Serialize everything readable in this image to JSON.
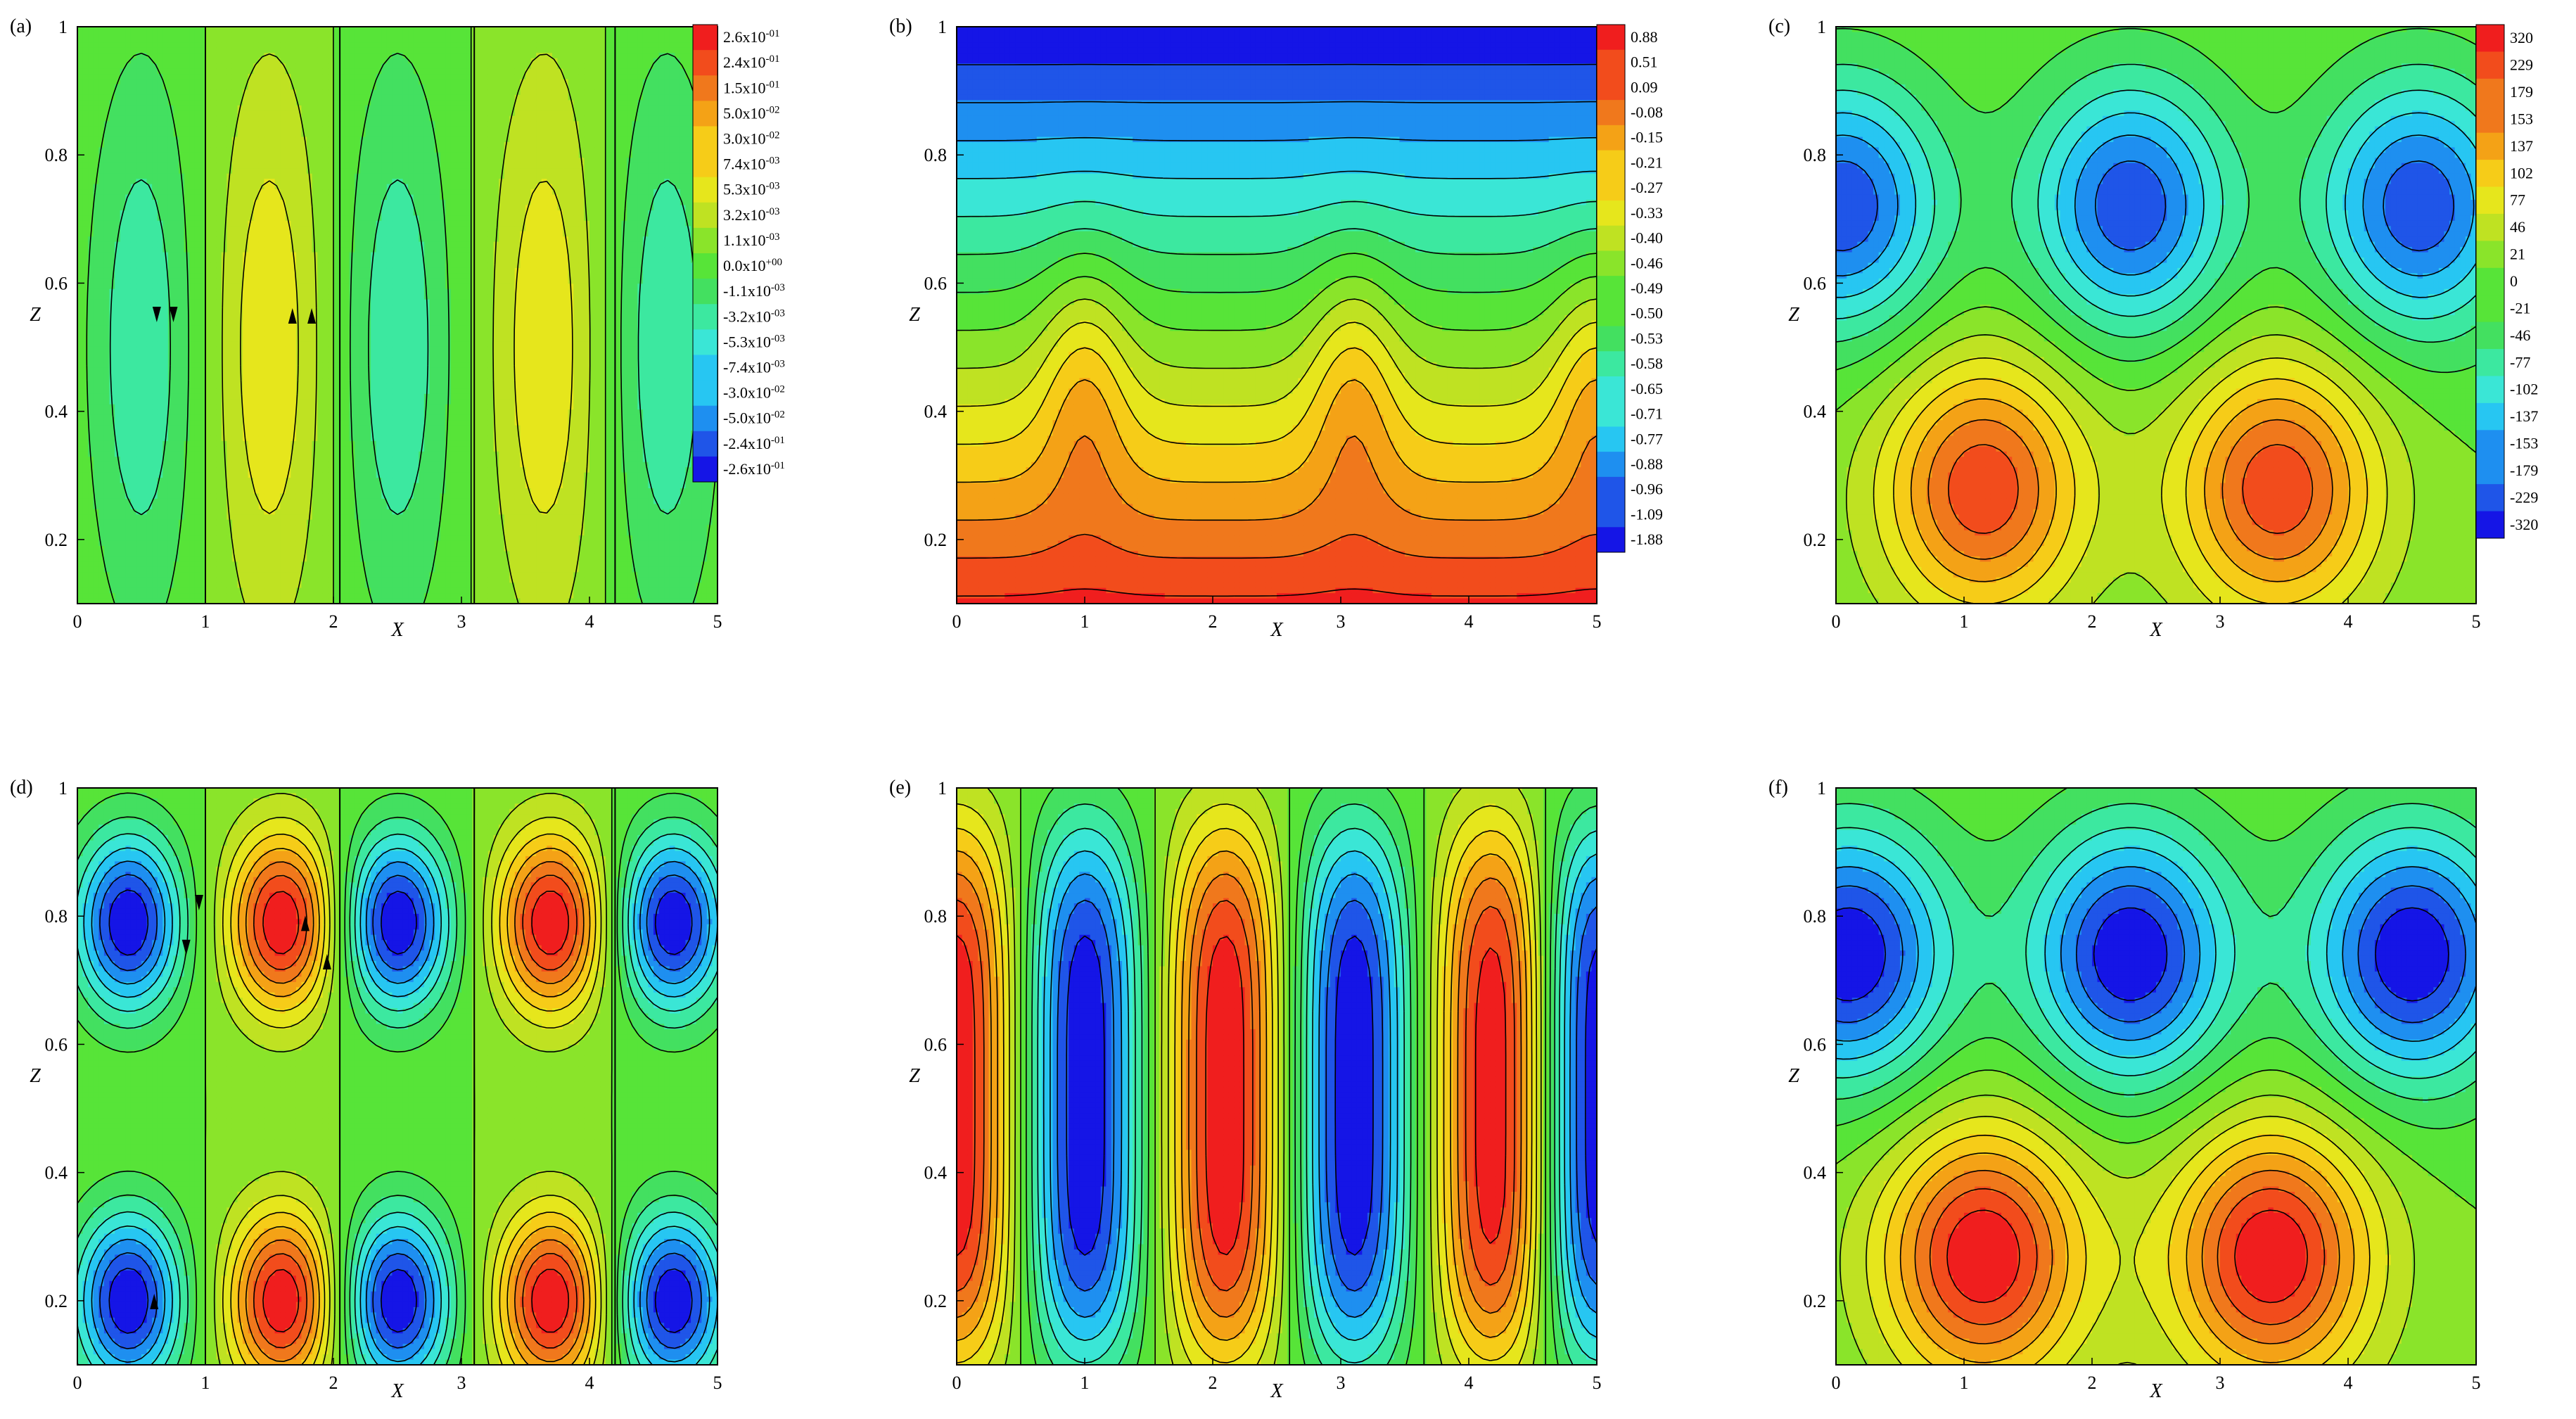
{
  "figure": {
    "colors": {
      "scale": [
        "#1515e6",
        "#1f55e8",
        "#1e8ff0",
        "#27c6f2",
        "#3ae6d6",
        "#3ce8a0",
        "#43e060",
        "#57e438",
        "#8ae42a",
        "#bfe222",
        "#e6e61c",
        "#f6cc18",
        "#f4a216",
        "#f0781c",
        "#f24c1c",
        "#f01e1e"
      ],
      "contour": "#000000"
    }
  },
  "chart_data": [
    {
      "id": "a",
      "label": "(a)",
      "type": "contour",
      "pattern": "cells",
      "xlabel": "X",
      "ylabel": "Z",
      "xlim": [
        0,
        5
      ],
      "ylim": [
        0.1,
        1
      ],
      "xticks": [
        "0",
        "1",
        "2",
        "3",
        "4",
        "5"
      ],
      "yticks": [
        "0.2",
        "0.4",
        "0.6",
        "0.8",
        "1"
      ],
      "ytick_values": [
        0.2,
        0.4,
        0.6,
        0.8,
        1.0
      ],
      "cell_centers": [
        0.5,
        1.5,
        2.5,
        3.65,
        4.6
      ],
      "cell_signs": [
        -1,
        1,
        -1,
        1,
        -1
      ],
      "cell_boundaries": [
        1.0,
        2.05,
        3.1,
        4.2
      ],
      "rolls_z": [
        0.5
      ],
      "amplitude_level": 0.35,
      "arrows": [
        {
          "x": 0.62,
          "z": 0.55,
          "dir": "down"
        },
        {
          "x": 0.75,
          "z": 0.55,
          "dir": "down"
        },
        {
          "x": 1.68,
          "z": 0.55,
          "dir": "up"
        },
        {
          "x": 1.83,
          "z": 0.55,
          "dir": "up"
        }
      ],
      "colorbar": {
        "labels": [
          "2.6x10",
          "2.4x10",
          "1.5x10",
          "5.0x10",
          "3.0x10",
          "7.4x10",
          "5.3x10",
          "3.2x10",
          "1.1x10",
          "0.0x10",
          "-1.1x10",
          "-3.2x10",
          "-5.3x10",
          "-7.4x10",
          "-3.0x10",
          "-5.0x10",
          "-2.4x10",
          "-2.6x10"
        ],
        "exponents": [
          "-01",
          "-01",
          "-01",
          "-02",
          "-02",
          "-03",
          "-03",
          "-03",
          "-03",
          "+00",
          "-03",
          "-03",
          "-03",
          "-03",
          "-02",
          "-02",
          "-01",
          "-01"
        ]
      }
    },
    {
      "id": "b",
      "label": "(b)",
      "type": "contour",
      "pattern": "layers",
      "xlabel": "X",
      "ylabel": "Z",
      "xlim": [
        0,
        5
      ],
      "ylim": [
        0.1,
        1
      ],
      "xticks": [
        "0",
        "1",
        "2",
        "3",
        "4",
        "5"
      ],
      "yticks": [
        "0.2",
        "0.4",
        "0.6",
        "0.8",
        "1"
      ],
      "ytick_values": [
        0.2,
        0.4,
        0.6,
        0.8,
        1.0
      ],
      "plume_centers": [
        1.0,
        3.1,
        5.0
      ],
      "colorbar": {
        "labels": [
          "0.88",
          "0.51",
          "0.09",
          "-0.08",
          "-0.15",
          "-0.21",
          "-0.27",
          "-0.33",
          "-0.40",
          "-0.46",
          "-0.49",
          "-0.50",
          "-0.53",
          "-0.58",
          "-0.65",
          "-0.71",
          "-0.77",
          "-0.88",
          "-0.96",
          "-1.09",
          "-1.88"
        ]
      }
    },
    {
      "id": "c",
      "label": "(c)",
      "type": "contour",
      "pattern": "blobs",
      "xlabel": "X",
      "ylabel": "Z",
      "xlim": [
        0,
        5
      ],
      "ylim": [
        0.1,
        1
      ],
      "xticks": [
        "0",
        "1",
        "2",
        "3",
        "4",
        "5"
      ],
      "yticks": [
        "0.2",
        "0.4",
        "0.6",
        "0.8",
        "1"
      ],
      "ytick_values": [
        0.2,
        0.4,
        0.6,
        0.8,
        1.0
      ],
      "blobs": [
        {
          "x": 1.15,
          "z": 0.28,
          "sign": 1
        },
        {
          "x": 3.45,
          "z": 0.28,
          "sign": 1
        },
        {
          "x": 2.3,
          "z": 0.72,
          "sign": -1
        },
        {
          "x": 4.55,
          "z": 0.72,
          "sign": -1
        },
        {
          "x": 0.05,
          "z": 0.72,
          "sign": -1
        }
      ],
      "blob_scale": 0.85,
      "colorbar": {
        "labels": [
          "320",
          "229",
          "179",
          "153",
          "137",
          "102",
          "77",
          "46",
          "21",
          "0",
          "-21",
          "-46",
          "-77",
          "-102",
          "-137",
          "-153",
          "-179",
          "-229",
          "-320"
        ]
      }
    },
    {
      "id": "d",
      "label": "(d)",
      "type": "contour",
      "pattern": "cells",
      "xlabel": "X",
      "ylabel": "Z",
      "xlim": [
        0,
        5
      ],
      "ylim": [
        0.1,
        1
      ],
      "xticks": [
        "0",
        "1",
        "2",
        "3",
        "4",
        "5"
      ],
      "yticks": [
        "0.2",
        "0.4",
        "0.6",
        "0.8",
        "1"
      ],
      "ytick_values": [
        0.2,
        0.4,
        0.6,
        0.8,
        1.0
      ],
      "cell_centers": [
        0.4,
        1.6,
        2.5,
        3.7,
        4.65
      ],
      "cell_signs": [
        -1,
        1,
        -1,
        1,
        -1
      ],
      "cell_boundaries": [
        1.0,
        2.05,
        3.1,
        4.2
      ],
      "rolls_z": [
        0.79,
        0.2
      ],
      "amplitude_level": 1.0,
      "arrows": [
        {
          "x": 0.95,
          "z": 0.82,
          "dir": "down"
        },
        {
          "x": 0.85,
          "z": 0.75,
          "dir": "down"
        },
        {
          "x": 1.78,
          "z": 0.79,
          "dir": "up"
        },
        {
          "x": 1.95,
          "z": 0.73,
          "dir": "up"
        },
        {
          "x": 0.6,
          "z": 0.2,
          "dir": "up"
        }
      ]
    },
    {
      "id": "e",
      "label": "(e)",
      "type": "contour",
      "pattern": "columns",
      "xlabel": "X",
      "ylabel": "Z",
      "xlim": [
        0,
        5
      ],
      "ylim": [
        0.1,
        1
      ],
      "xticks": [
        "0",
        "1",
        "2",
        "3",
        "4",
        "5"
      ],
      "yticks": [
        "0.2",
        "0.4",
        "0.6",
        "0.8",
        "1"
      ],
      "ytick_values": [
        0.2,
        0.4,
        0.6,
        0.8,
        1.0
      ],
      "column_centers": [
        0.0,
        1.0,
        2.1,
        3.1,
        4.2,
        5.0
      ],
      "column_signs": [
        1,
        -1,
        1,
        -1,
        1,
        -1
      ]
    },
    {
      "id": "f",
      "label": "(f)",
      "type": "contour",
      "pattern": "blobs",
      "xlabel": "X",
      "ylabel": "Z",
      "xlim": [
        0,
        5
      ],
      "ylim": [
        0.1,
        1
      ],
      "xticks": [
        "0",
        "1",
        "2",
        "3",
        "4",
        "5"
      ],
      "yticks": [
        "0.2",
        "0.4",
        "0.6",
        "0.8",
        "1"
      ],
      "ytick_values": [
        0.2,
        0.4,
        0.6,
        0.8,
        1.0
      ],
      "blobs": [
        {
          "x": 1.15,
          "z": 0.27,
          "sign": 1
        },
        {
          "x": 3.4,
          "z": 0.27,
          "sign": 1
        },
        {
          "x": 2.3,
          "z": 0.74,
          "sign": -1
        },
        {
          "x": 4.5,
          "z": 0.74,
          "sign": -1
        },
        {
          "x": 0.1,
          "z": 0.74,
          "sign": -1
        }
      ],
      "blob_scale": 1.0
    }
  ]
}
